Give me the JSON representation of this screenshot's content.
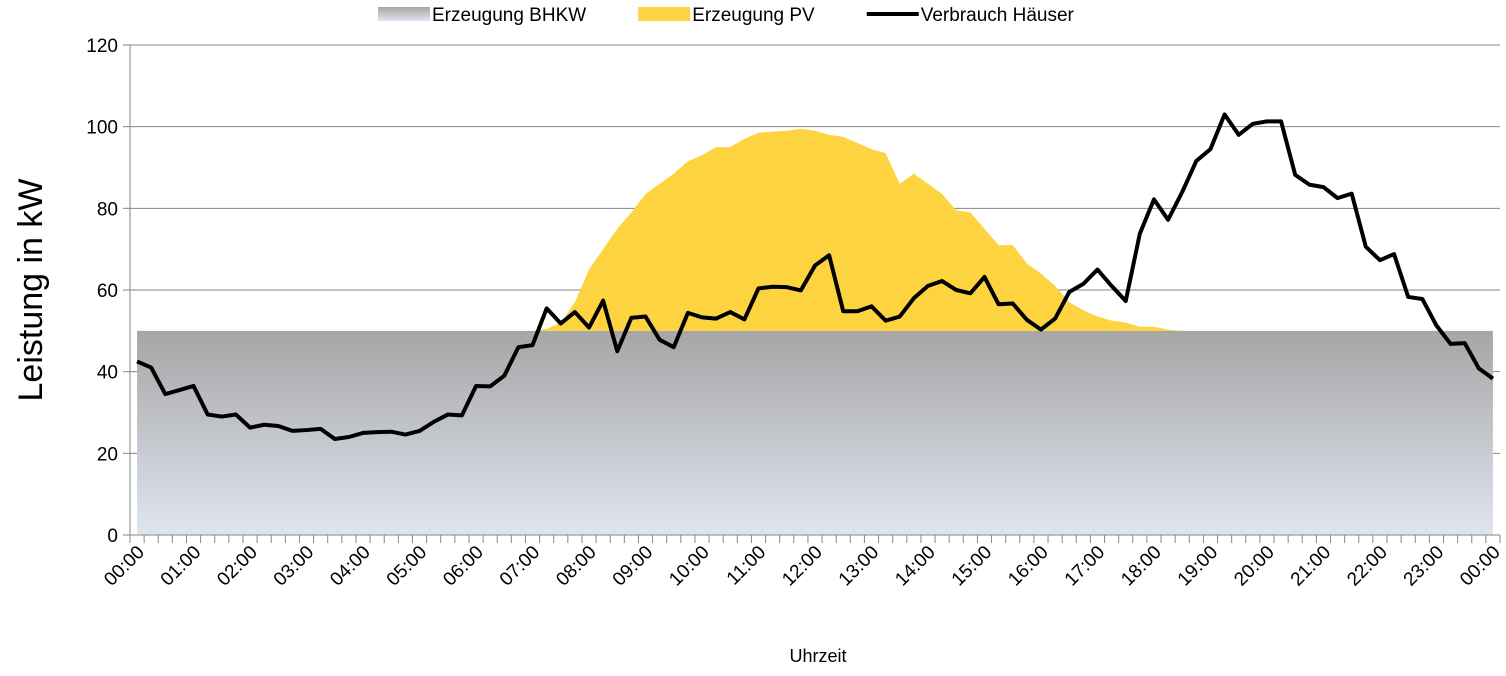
{
  "chart_data": {
    "type": "area_line",
    "ylabel": "Leistung in kW",
    "xlabel": "Uhrzeit",
    "categories": [
      "00:00",
      null,
      null,
      null,
      "01:00",
      null,
      null,
      null,
      "02:00",
      null,
      null,
      null,
      "03:00",
      null,
      null,
      null,
      "04:00",
      null,
      null,
      null,
      "05:00",
      null,
      null,
      null,
      "06:00",
      null,
      null,
      null,
      "07:00",
      null,
      null,
      null,
      "08:00",
      null,
      null,
      null,
      "09:00",
      null,
      null,
      null,
      "10:00",
      null,
      null,
      null,
      "11:00",
      null,
      null,
      null,
      "12:00",
      null,
      null,
      null,
      "13:00",
      null,
      null,
      null,
      "14:00",
      null,
      null,
      null,
      "15:00",
      null,
      null,
      null,
      "16:00",
      null,
      null,
      null,
      "17:00",
      null,
      null,
      null,
      "18:00",
      null,
      null,
      null,
      "19:00",
      null,
      null,
      null,
      "20:00",
      null,
      null,
      null,
      "21:00",
      null,
      null,
      null,
      "22:00",
      null,
      null,
      null,
      "23:00",
      null,
      null,
      null,
      "00:00"
    ],
    "series": [
      {
        "name": "Erzeugung BHKW",
        "kind": "area",
        "color": "#a6a6a6",
        "values": [
          50,
          50,
          50,
          50,
          50,
          50,
          50,
          50,
          50,
          50,
          50,
          50,
          50,
          50,
          50,
          50,
          50,
          50,
          50,
          50,
          50,
          50,
          50,
          50,
          50,
          50,
          50,
          50,
          50,
          50,
          50,
          50,
          50,
          50,
          50,
          50,
          50,
          50,
          50,
          50,
          50,
          50,
          50,
          50,
          50,
          50,
          50,
          50,
          50,
          50,
          50,
          50,
          50,
          50,
          50,
          50,
          50,
          50,
          50,
          50,
          50,
          50,
          50,
          50,
          50,
          50,
          50,
          50,
          50,
          50,
          50,
          50,
          50,
          50,
          50,
          50,
          50,
          50,
          50,
          50,
          50,
          50,
          50,
          50,
          50,
          50,
          50,
          50,
          50,
          50,
          50,
          50,
          50,
          50,
          50,
          50,
          50
        ]
      },
      {
        "name": "Erzeugung PV",
        "kind": "area",
        "color": "#fdd440",
        "values": [
          0,
          0,
          0,
          0,
          0,
          0,
          0,
          0,
          0,
          0,
          0,
          0,
          0,
          0,
          0,
          0,
          0,
          0,
          0,
          0,
          0,
          0,
          0,
          0,
          0,
          0,
          0,
          0,
          0,
          0.5,
          2,
          7,
          15,
          20,
          25,
          29,
          33.5,
          36,
          38.5,
          41.5,
          43,
          45,
          45,
          47,
          48.5,
          48.8,
          49,
          49.5,
          49,
          48,
          47.5,
          46,
          44.5,
          43.5,
          36,
          38.5,
          36,
          33.5,
          29.5,
          29,
          25,
          21,
          21,
          16.5,
          14,
          11,
          7,
          5,
          3.5,
          2.5,
          2,
          1,
          1,
          0.3,
          0,
          0,
          0,
          0,
          0,
          0,
          0,
          0,
          0,
          0,
          0,
          0,
          0,
          0,
          0,
          0,
          0,
          0,
          0,
          0,
          0,
          0,
          0
        ]
      },
      {
        "name": "Verbrauch Häuser",
        "kind": "line",
        "color": "#000000",
        "values": [
          42.5,
          41,
          34.5,
          35.5,
          36.5,
          29.5,
          29,
          29.5,
          26.3,
          27,
          26.7,
          25.5,
          25.7,
          26,
          23.5,
          24,
          25,
          25.2,
          25.3,
          24.6,
          25.5,
          27.7,
          29.5,
          29.3,
          36.5,
          36.4,
          39,
          46,
          46.5,
          55.5,
          51.8,
          54.6,
          50.8,
          57.4,
          45,
          53.2,
          53.5,
          47.8,
          46,
          54.4,
          53.3,
          53,
          54.6,
          52.8,
          60.4,
          60.8,
          60.7,
          59.9,
          66,
          68.5,
          54.8,
          54.8,
          56,
          52.5,
          53.5,
          58,
          61,
          62.2,
          60,
          59.2,
          63.2,
          56.5,
          56.7,
          52.7,
          50.3,
          53,
          59.5,
          61.5,
          65,
          61,
          57.3,
          73.8,
          82.2,
          77.2,
          84,
          91.6,
          94.5,
          103,
          98,
          100.7,
          101.3,
          101.3,
          88.2,
          85.8,
          85.2,
          82.5,
          83.6,
          70.6,
          67.3,
          68.8,
          58.3,
          57.8,
          51.3,
          46.8,
          47,
          40.8,
          38.3
        ]
      }
    ],
    "stacked": true,
    "ylim": [
      0,
      120
    ],
    "yticks": [
      0,
      20,
      40,
      60,
      80,
      100,
      120
    ],
    "grid": true,
    "legend": "top"
  }
}
